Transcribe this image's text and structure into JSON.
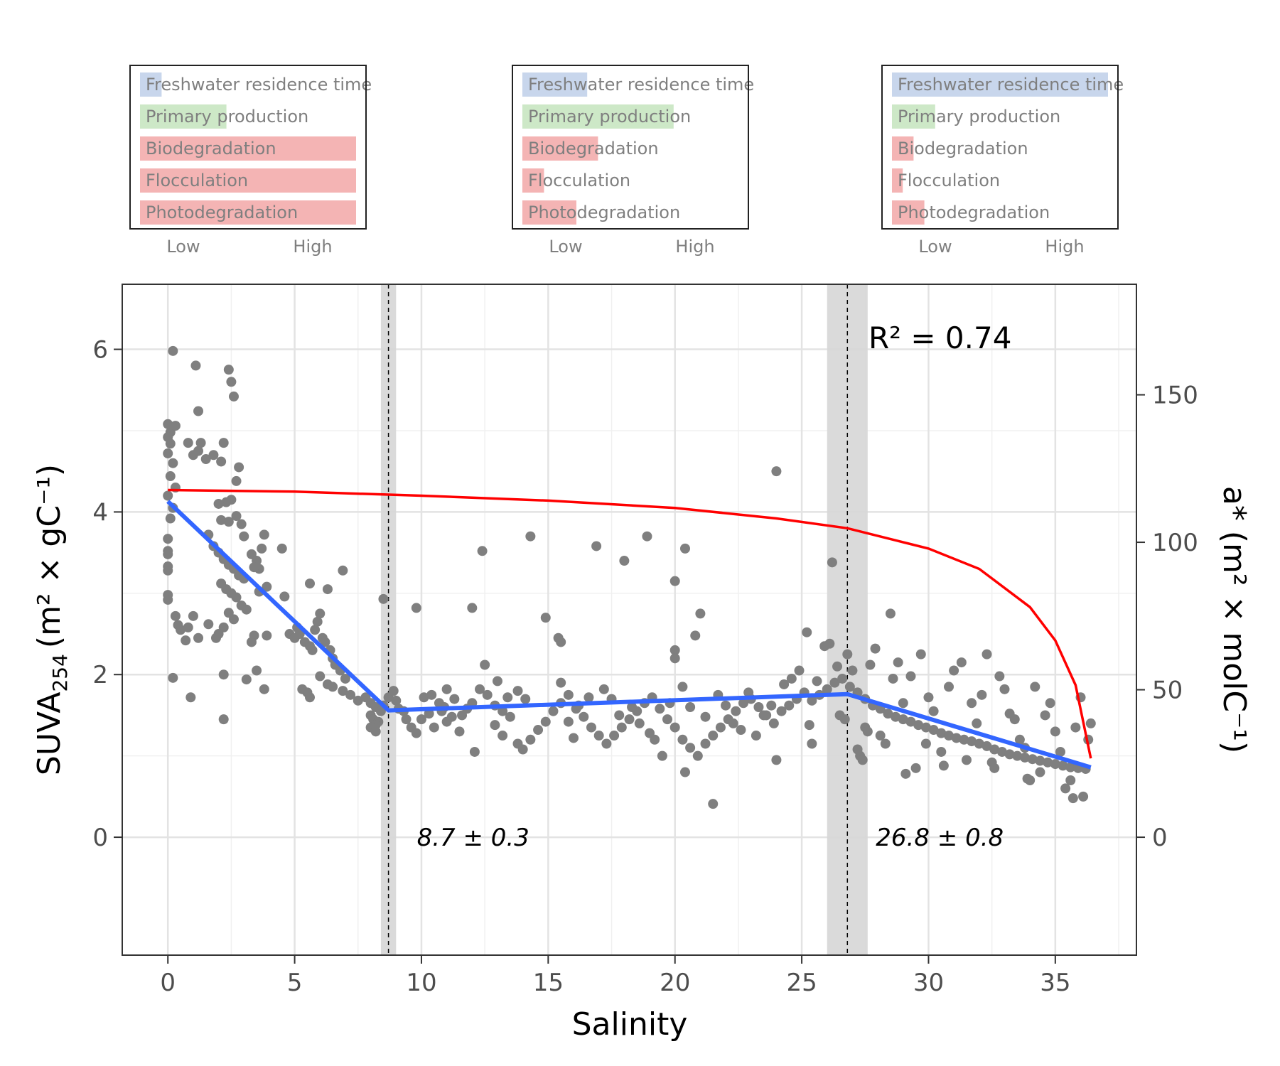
{
  "chart_data": {
    "type": "scatter",
    "xlabel": "Salinity",
    "ylabel_main": "SUVA",
    "ylabel_sub": "254",
    "ylabel_rest": "(m² × gC⁻¹)",
    "y2label": "a* (m² × molC⁻¹)",
    "xlim": [
      -1.8,
      38.2
    ],
    "ylim": [
      -1.45,
      6.8
    ],
    "xticks": [
      0,
      5,
      10,
      15,
      20,
      25,
      30,
      35
    ],
    "yticks": [
      0,
      2,
      4,
      6
    ],
    "y2ticks": [
      0,
      50,
      100,
      150
    ],
    "y2_to_y_factor": 0.03627,
    "grid": true,
    "r2_label": "R² = 0.74",
    "breakpoints": [
      {
        "x": 8.7,
        "ci": [
          8.4,
          9.0
        ],
        "label": "8.7 ± 0.3"
      },
      {
        "x": 26.8,
        "ci": [
          26.0,
          27.6
        ],
        "label": "26.8 ± 0.8"
      }
    ],
    "piecewise_fit": {
      "color": "#3366ff",
      "points": [
        [
          0,
          4.13
        ],
        [
          8.7,
          1.56
        ],
        [
          26.8,
          1.76
        ],
        [
          36.4,
          0.86
        ]
      ]
    },
    "mixing_line": {
      "color": "#ff0000",
      "points": [
        [
          0,
          4.27
        ],
        [
          5,
          4.25
        ],
        [
          10,
          4.2
        ],
        [
          15,
          4.14
        ],
        [
          20,
          4.05
        ],
        [
          24,
          3.92
        ],
        [
          26.8,
          3.8
        ],
        [
          30,
          3.55
        ],
        [
          32,
          3.3
        ],
        [
          34,
          2.83
        ],
        [
          35,
          2.42
        ],
        [
          35.8,
          1.87
        ],
        [
          36.4,
          0.97
        ]
      ]
    },
    "points_color": "#7f7f7f",
    "points": [
      [
        0.2,
        5.98
      ],
      [
        0.0,
        5.08
      ],
      [
        0.1,
        4.98
      ],
      [
        0.3,
        5.06
      ],
      [
        0.0,
        4.92
      ],
      [
        0.1,
        4.84
      ],
      [
        0.0,
        4.72
      ],
      [
        0.2,
        4.6
      ],
      [
        0.1,
        4.44
      ],
      [
        0.3,
        4.3
      ],
      [
        0.0,
        4.2
      ],
      [
        0.2,
        4.05
      ],
      [
        0.1,
        3.92
      ],
      [
        0.0,
        3.67
      ],
      [
        0.0,
        3.52
      ],
      [
        0.0,
        3.48
      ],
      [
        0.0,
        3.33
      ],
      [
        0.0,
        3.28
      ],
      [
        0.0,
        2.98
      ],
      [
        0.0,
        2.92
      ],
      [
        0.3,
        2.72
      ],
      [
        0.2,
        1.96
      ],
      [
        0.4,
        2.61
      ],
      [
        0.5,
        2.55
      ],
      [
        0.7,
        2.42
      ],
      [
        0.8,
        2.58
      ],
      [
        1.0,
        2.72
      ],
      [
        1.2,
        2.45
      ],
      [
        0.9,
        1.72
      ],
      [
        1.1,
        5.8
      ],
      [
        1.2,
        5.24
      ],
      [
        1.3,
        4.85
      ],
      [
        0.8,
        4.85
      ],
      [
        1.0,
        4.7
      ],
      [
        1.2,
        4.75
      ],
      [
        1.5,
        4.65
      ],
      [
        1.8,
        4.7
      ],
      [
        2.1,
        4.62
      ],
      [
        2.2,
        4.85
      ],
      [
        2.4,
        5.75
      ],
      [
        2.5,
        5.6
      ],
      [
        2.6,
        5.42
      ],
      [
        2.8,
        4.55
      ],
      [
        2.7,
        4.38
      ],
      [
        2.5,
        4.15
      ],
      [
        2.3,
        4.12
      ],
      [
        2.0,
        4.1
      ],
      [
        2.1,
        3.9
      ],
      [
        2.4,
        3.88
      ],
      [
        2.7,
        3.95
      ],
      [
        2.9,
        3.85
      ],
      [
        3.0,
        3.7
      ],
      [
        1.6,
        3.72
      ],
      [
        1.8,
        3.58
      ],
      [
        2.0,
        3.5
      ],
      [
        2.2,
        3.42
      ],
      [
        2.4,
        3.35
      ],
      [
        2.6,
        3.3
      ],
      [
        2.8,
        3.22
      ],
      [
        3.0,
        3.18
      ],
      [
        2.1,
        3.12
      ],
      [
        2.3,
        3.05
      ],
      [
        2.5,
        3.0
      ],
      [
        2.7,
        2.95
      ],
      [
        2.9,
        2.85
      ],
      [
        3.1,
        2.8
      ],
      [
        2.4,
        2.76
      ],
      [
        2.6,
        2.68
      ],
      [
        2.2,
        2.58
      ],
      [
        2.0,
        2.5
      ],
      [
        1.9,
        2.45
      ],
      [
        1.6,
        2.62
      ],
      [
        2.2,
        2.0
      ],
      [
        2.2,
        1.45
      ],
      [
        3.3,
        3.48
      ],
      [
        3.5,
        3.4
      ],
      [
        3.6,
        3.3
      ],
      [
        3.4,
        3.32
      ],
      [
        3.8,
        3.72
      ],
      [
        3.7,
        3.55
      ],
      [
        3.9,
        3.08
      ],
      [
        3.6,
        3.02
      ],
      [
        3.4,
        2.48
      ],
      [
        3.3,
        2.4
      ],
      [
        3.5,
        2.05
      ],
      [
        3.1,
        1.94
      ],
      [
        3.8,
        1.82
      ],
      [
        3.9,
        2.48
      ],
      [
        4.5,
        3.55
      ],
      [
        4.6,
        2.96
      ],
      [
        4.8,
        2.5
      ],
      [
        5.0,
        2.45
      ],
      [
        5.1,
        2.58
      ],
      [
        5.2,
        2.5
      ],
      [
        5.4,
        2.4
      ],
      [
        5.6,
        2.35
      ],
      [
        5.7,
        2.3
      ],
      [
        5.8,
        2.55
      ],
      [
        5.9,
        2.65
      ],
      [
        6.0,
        2.75
      ],
      [
        6.1,
        2.45
      ],
      [
        6.2,
        2.4
      ],
      [
        6.4,
        2.3
      ],
      [
        6.5,
        2.2
      ],
      [
        6.6,
        2.12
      ],
      [
        6.8,
        2.05
      ],
      [
        7.0,
        1.95
      ],
      [
        6.3,
        1.88
      ],
      [
        6.5,
        1.85
      ],
      [
        6.9,
        1.8
      ],
      [
        7.2,
        1.75
      ],
      [
        5.5,
        1.78
      ],
      [
        5.6,
        1.72
      ],
      [
        5.3,
        1.82
      ],
      [
        6.0,
        1.98
      ],
      [
        6.3,
        3.05
      ],
      [
        6.9,
        3.28
      ],
      [
        5.6,
        3.12
      ],
      [
        7.5,
        1.68
      ],
      [
        7.8,
        1.72
      ],
      [
        8.0,
        1.65
      ],
      [
        8.2,
        1.6
      ],
      [
        8.4,
        1.55
      ],
      [
        8.0,
        1.5
      ],
      [
        8.1,
        1.45
      ],
      [
        8.3,
        1.42
      ],
      [
        8.2,
        1.38
      ],
      [
        8.0,
        1.35
      ],
      [
        8.2,
        1.3
      ],
      [
        8.5,
        1.62
      ],
      [
        8.7,
        1.72
      ],
      [
        8.9,
        1.8
      ],
      [
        9.0,
        1.68
      ],
      [
        9.1,
        1.58
      ],
      [
        9.3,
        1.55
      ],
      [
        9.4,
        1.45
      ],
      [
        9.6,
        1.35
      ],
      [
        9.8,
        1.28
      ],
      [
        8.5,
        2.93
      ],
      [
        9.8,
        2.82
      ],
      [
        10.1,
        1.72
      ],
      [
        10.4,
        1.75
      ],
      [
        10.7,
        1.65
      ],
      [
        11.0,
        1.82
      ],
      [
        11.3,
        1.7
      ],
      [
        10.8,
        1.55
      ],
      [
        11.2,
        1.48
      ],
      [
        10.5,
        1.35
      ],
      [
        11.0,
        1.42
      ],
      [
        11.5,
        1.3
      ],
      [
        11.8,
        1.58
      ],
      [
        12.0,
        1.65
      ],
      [
        12.3,
        1.82
      ],
      [
        12.6,
        1.75
      ],
      [
        12.9,
        1.62
      ],
      [
        13.2,
        1.55
      ],
      [
        13.5,
        1.48
      ],
      [
        12.9,
        1.38
      ],
      [
        13.2,
        1.25
      ],
      [
        13.8,
        1.15
      ],
      [
        14.0,
        1.08
      ],
      [
        14.3,
        1.2
      ],
      [
        14.6,
        1.32
      ],
      [
        14.9,
        1.42
      ],
      [
        15.2,
        1.55
      ],
      [
        15.5,
        1.65
      ],
      [
        15.8,
        1.75
      ],
      [
        16.1,
        1.58
      ],
      [
        16.4,
        1.48
      ],
      [
        16.7,
        1.35
      ],
      [
        17.0,
        1.25
      ],
      [
        17.3,
        1.15
      ],
      [
        17.6,
        1.25
      ],
      [
        17.9,
        1.35
      ],
      [
        18.2,
        1.45
      ],
      [
        18.5,
        1.55
      ],
      [
        18.8,
        1.65
      ],
      [
        19.1,
        1.72
      ],
      [
        19.4,
        1.58
      ],
      [
        19.7,
        1.45
      ],
      [
        20.0,
        1.35
      ],
      [
        20.3,
        1.2
      ],
      [
        20.6,
        1.1
      ],
      [
        20.9,
        1.0
      ],
      [
        21.2,
        1.15
      ],
      [
        21.5,
        1.25
      ],
      [
        21.8,
        1.35
      ],
      [
        22.1,
        1.45
      ],
      [
        22.4,
        1.55
      ],
      [
        22.7,
        1.65
      ],
      [
        23.0,
        1.7
      ],
      [
        23.3,
        1.6
      ],
      [
        23.6,
        1.5
      ],
      [
        23.9,
        1.4
      ],
      [
        24.2,
        1.55
      ],
      [
        24.5,
        1.62
      ],
      [
        24.8,
        1.7
      ],
      [
        25.1,
        1.78
      ],
      [
        25.4,
        1.68
      ],
      [
        25.7,
        1.75
      ],
      [
        26.0,
        1.82
      ],
      [
        26.3,
        1.9
      ],
      [
        26.6,
        1.95
      ],
      [
        26.9,
        1.85
      ],
      [
        27.2,
        1.78
      ],
      [
        27.5,
        1.7
      ],
      [
        27.8,
        1.62
      ],
      [
        28.1,
        1.58
      ],
      [
        28.4,
        1.52
      ],
      [
        28.7,
        1.48
      ],
      [
        29.0,
        1.45
      ],
      [
        29.3,
        1.42
      ],
      [
        29.6,
        1.38
      ],
      [
        29.9,
        1.35
      ],
      [
        30.2,
        1.32
      ],
      [
        30.5,
        1.28
      ],
      [
        30.8,
        1.25
      ],
      [
        31.1,
        1.22
      ],
      [
        31.4,
        1.2
      ],
      [
        31.7,
        1.18
      ],
      [
        32.0,
        1.15
      ],
      [
        32.3,
        1.12
      ],
      [
        32.6,
        1.08
      ],
      [
        32.9,
        1.05
      ],
      [
        33.2,
        1.02
      ],
      [
        33.5,
        1.0
      ],
      [
        33.8,
        0.98
      ],
      [
        34.1,
        0.96
      ],
      [
        34.4,
        0.94
      ],
      [
        34.7,
        0.92
      ],
      [
        35.0,
        0.9
      ],
      [
        35.3,
        0.88
      ],
      [
        35.6,
        0.86
      ],
      [
        35.9,
        0.85
      ],
      [
        36.2,
        0.84
      ],
      [
        10.0,
        1.45
      ],
      [
        10.3,
        1.52
      ],
      [
        10.9,
        1.6
      ],
      [
        11.6,
        1.5
      ],
      [
        12.1,
        1.05
      ],
      [
        12.4,
        3.52
      ],
      [
        12.0,
        2.82
      ],
      [
        12.5,
        2.12
      ],
      [
        13.0,
        1.92
      ],
      [
        13.4,
        1.72
      ],
      [
        13.8,
        1.8
      ],
      [
        14.1,
        1.7
      ],
      [
        14.3,
        3.7
      ],
      [
        14.9,
        2.7
      ],
      [
        15.4,
        2.45
      ],
      [
        15.5,
        2.4
      ],
      [
        15.5,
        1.9
      ],
      [
        15.8,
        1.42
      ],
      [
        16.0,
        1.22
      ],
      [
        16.2,
        1.62
      ],
      [
        16.6,
        1.72
      ],
      [
        16.9,
        3.58
      ],
      [
        17.2,
        1.82
      ],
      [
        17.5,
        1.7
      ],
      [
        17.8,
        1.5
      ],
      [
        18.0,
        3.4
      ],
      [
        18.3,
        1.6
      ],
      [
        18.6,
        1.4
      ],
      [
        18.9,
        3.7
      ],
      [
        19.0,
        1.28
      ],
      [
        19.2,
        1.2
      ],
      [
        19.5,
        1.0
      ],
      [
        19.8,
        1.65
      ],
      [
        20.0,
        3.15
      ],
      [
        20.0,
        2.3
      ],
      [
        20.0,
        2.2
      ],
      [
        20.3,
        1.85
      ],
      [
        20.4,
        3.55
      ],
      [
        20.6,
        1.6
      ],
      [
        20.8,
        2.48
      ],
      [
        21.0,
        2.75
      ],
      [
        21.2,
        1.48
      ],
      [
        21.5,
        0.41
      ],
      [
        21.7,
        1.75
      ],
      [
        20.4,
        0.8
      ],
      [
        22.0,
        1.62
      ],
      [
        22.3,
        1.4
      ],
      [
        22.6,
        1.32
      ],
      [
        22.9,
        1.78
      ],
      [
        23.2,
        1.25
      ],
      [
        23.5,
        1.5
      ],
      [
        23.8,
        1.62
      ],
      [
        24.0,
        4.5
      ],
      [
        24.0,
        0.95
      ],
      [
        24.3,
        1.88
      ],
      [
        24.6,
        1.95
      ],
      [
        24.9,
        2.05
      ],
      [
        25.2,
        2.52
      ],
      [
        25.3,
        1.38
      ],
      [
        25.4,
        1.15
      ],
      [
        25.6,
        1.92
      ],
      [
        25.9,
        2.35
      ],
      [
        26.1,
        2.38
      ],
      [
        26.2,
        3.38
      ],
      [
        26.4,
        2.1
      ],
      [
        26.5,
        1.5
      ],
      [
        26.7,
        1.45
      ],
      [
        26.8,
        2.25
      ],
      [
        27.0,
        2.05
      ],
      [
        27.2,
        1.08
      ],
      [
        27.3,
        1.0
      ],
      [
        27.4,
        0.95
      ],
      [
        27.5,
        1.35
      ],
      [
        27.6,
        1.3
      ],
      [
        27.7,
        2.12
      ],
      [
        27.9,
        2.32
      ],
      [
        28.1,
        1.25
      ],
      [
        28.3,
        1.15
      ],
      [
        28.5,
        2.75
      ],
      [
        28.6,
        1.95
      ],
      [
        28.8,
        2.15
      ],
      [
        29.0,
        1.65
      ],
      [
        29.1,
        0.78
      ],
      [
        29.3,
        1.98
      ],
      [
        29.5,
        0.85
      ],
      [
        29.7,
        2.25
      ],
      [
        29.9,
        1.15
      ],
      [
        30.0,
        1.72
      ],
      [
        30.2,
        1.55
      ],
      [
        30.5,
        1.05
      ],
      [
        30.6,
        0.88
      ],
      [
        30.8,
        1.85
      ],
      [
        31.0,
        2.05
      ],
      [
        31.3,
        2.15
      ],
      [
        31.5,
        0.95
      ],
      [
        31.7,
        1.65
      ],
      [
        31.9,
        1.4
      ],
      [
        32.1,
        1.75
      ],
      [
        32.3,
        2.25
      ],
      [
        32.5,
        0.92
      ],
      [
        32.6,
        0.85
      ],
      [
        32.8,
        1.98
      ],
      [
        33.0,
        1.82
      ],
      [
        33.2,
        1.52
      ],
      [
        33.4,
        1.45
      ],
      [
        33.6,
        1.2
      ],
      [
        33.8,
        1.1
      ],
      [
        33.9,
        0.72
      ],
      [
        34.0,
        0.7
      ],
      [
        34.2,
        1.85
      ],
      [
        34.4,
        0.8
      ],
      [
        34.6,
        1.5
      ],
      [
        34.8,
        1.65
      ],
      [
        35.0,
        1.3
      ],
      [
        35.2,
        1.05
      ],
      [
        35.4,
        0.6
      ],
      [
        35.6,
        0.7
      ],
      [
        35.8,
        1.35
      ],
      [
        36.0,
        1.72
      ],
      [
        36.1,
        0.5
      ],
      [
        36.3,
        1.2
      ],
      [
        36.4,
        1.4
      ],
      [
        35.7,
        0.48
      ]
    ]
  },
  "panels": [
    {
      "bars": [
        {
          "label": "Freshwater residence time",
          "level": 0.1,
          "color": "#c8d6ec"
        },
        {
          "label": "Primary production",
          "level": 0.4,
          "color": "#cde8c7"
        },
        {
          "label": "Biodegradation",
          "level": 1.0,
          "color": "#f4b4b4"
        },
        {
          "label": "Flocculation",
          "level": 1.0,
          "color": "#f4b4b4"
        },
        {
          "label": "Photodegradation",
          "level": 1.0,
          "color": "#f4b4b4"
        }
      ],
      "low": "Low",
      "high": "High"
    },
    {
      "bars": [
        {
          "label": "Freshwater residence time",
          "level": 0.3,
          "color": "#c8d6ec"
        },
        {
          "label": "Primary production",
          "level": 0.7,
          "color": "#cde8c7"
        },
        {
          "label": "Biodegradation",
          "level": 0.35,
          "color": "#f4b4b4"
        },
        {
          "label": "Flocculation",
          "level": 0.1,
          "color": "#f4b4b4"
        },
        {
          "label": "Photodegradation",
          "level": 0.25,
          "color": "#f4b4b4"
        }
      ],
      "low": "Low",
      "high": "High"
    },
    {
      "bars": [
        {
          "label": "Freshwater residence time",
          "level": 1.0,
          "color": "#c8d6ec"
        },
        {
          "label": "Primary production",
          "level": 0.2,
          "color": "#cde8c7"
        },
        {
          "label": "Biodegradation",
          "level": 0.1,
          "color": "#f4b4b4"
        },
        {
          "label": "Flocculation",
          "level": 0.05,
          "color": "#f4b4b4"
        },
        {
          "label": "Photodegradation",
          "level": 0.15,
          "color": "#f4b4b4"
        }
      ],
      "low": "Low",
      "high": "High"
    }
  ]
}
